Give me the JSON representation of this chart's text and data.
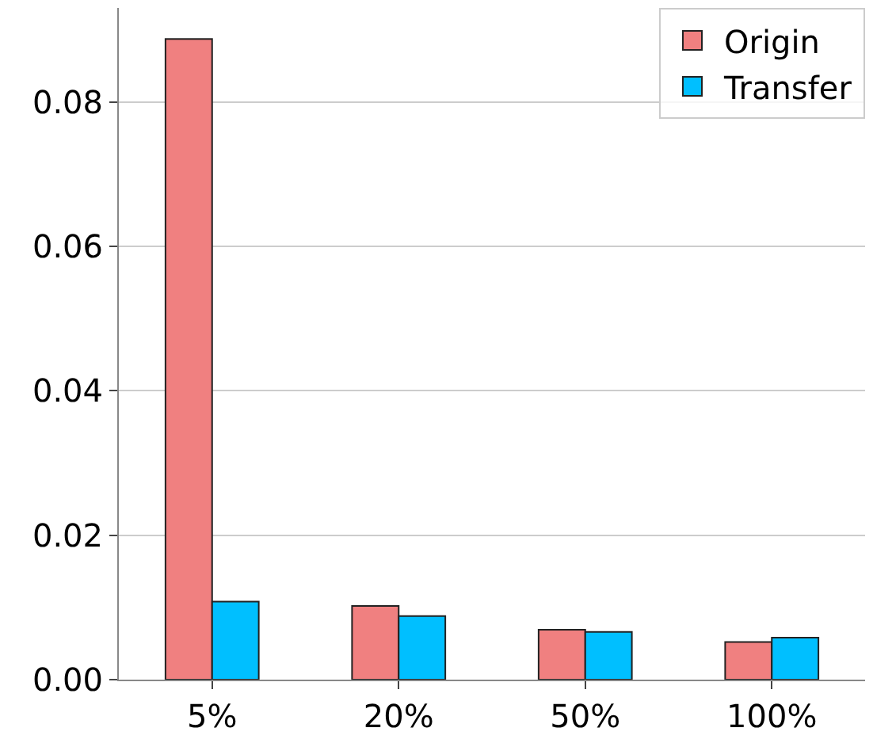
{
  "chart_data": {
    "type": "bar",
    "categories": [
      "5%",
      "20%",
      "50%",
      "100%"
    ],
    "series": [
      {
        "name": "Origin",
        "color": "#f08080",
        "values": [
          0.0887,
          0.0102,
          0.0069,
          0.0052
        ]
      },
      {
        "name": "Transfer",
        "color": "#00bfff",
        "values": [
          0.0108,
          0.0088,
          0.0066,
          0.0058
        ]
      }
    ],
    "ylim": [
      0,
      0.093
    ],
    "yticks": [
      {
        "value": 0,
        "label": "0.00"
      },
      {
        "value": 0.02,
        "label": "0.02"
      },
      {
        "value": 0.04,
        "label": "0.04"
      },
      {
        "value": 0.06,
        "label": "0.06"
      },
      {
        "value": 0.08,
        "label": "0.08"
      }
    ],
    "grid": "y",
    "legend": "top right"
  }
}
